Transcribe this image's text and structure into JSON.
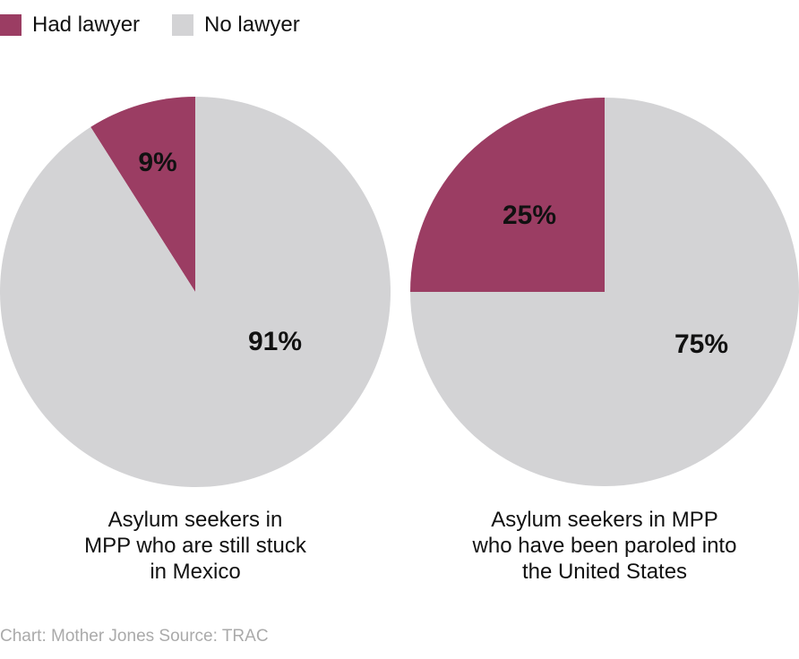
{
  "legend": [
    {
      "label": "Had lawyer",
      "color": "#9b3d63"
    },
    {
      "label": "No lawyer",
      "color": "#d3d3d5"
    }
  ],
  "chart_data": [
    {
      "type": "pie",
      "caption": [
        "Asylum seekers in",
        "MPP who are still stuck",
        "in Mexico"
      ],
      "slices": [
        {
          "name": "Had lawyer",
          "value": 9,
          "label": "9%",
          "color": "#9b3d63"
        },
        {
          "name": "No lawyer",
          "value": 91,
          "label": "91%",
          "color": "#d3d3d5"
        }
      ]
    },
    {
      "type": "pie",
      "caption": [
        "Asylum seekers in MPP",
        "who have been paroled into",
        "the United States"
      ],
      "slices": [
        {
          "name": "Had lawyer",
          "value": 25,
          "label": "25%",
          "color": "#9b3d63"
        },
        {
          "name": "No lawyer",
          "value": 75,
          "label": "75%",
          "color": "#d3d3d5"
        }
      ]
    }
  ],
  "source": "Chart: Mother Jones Source: TRAC"
}
